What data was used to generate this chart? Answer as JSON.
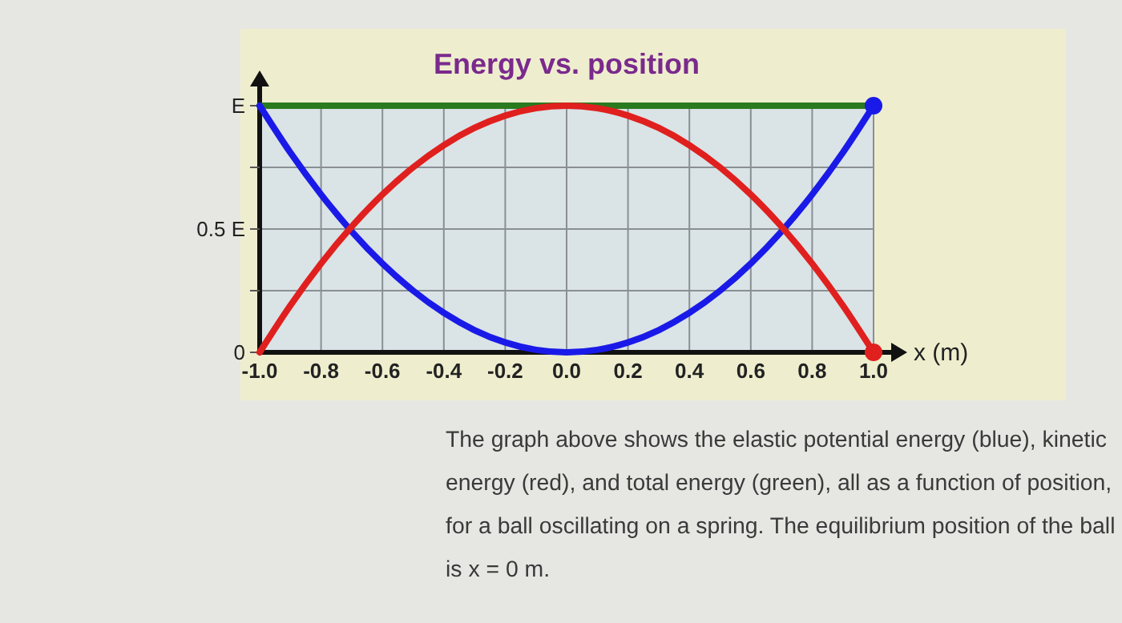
{
  "chart_data": {
    "type": "line",
    "title": "Energy vs. position",
    "xlabel": "x (m)",
    "x": [
      -1,
      -0.9,
      -0.8,
      -0.7,
      -0.6,
      -0.5,
      -0.4,
      -0.3,
      -0.2,
      -0.1,
      0,
      0.1,
      0.2,
      0.3,
      0.4,
      0.5,
      0.6,
      0.7,
      0.8,
      0.9,
      1
    ],
    "series": [
      {
        "color": "#2a7a1e",
        "values": [
          1,
          1,
          1,
          1,
          1,
          1,
          1,
          1,
          1,
          1,
          1,
          1,
          1,
          1,
          1,
          1,
          1,
          1,
          1,
          1,
          1
        ]
      },
      {
        "color": "#1a1ae8",
        "values": [
          1,
          0.81,
          0.64,
          0.49,
          0.36,
          0.25,
          0.16,
          0.09,
          0.04,
          0.01,
          0,
          0.01,
          0.04,
          0.09,
          0.16,
          0.25,
          0.36,
          0.49,
          0.64,
          0.81,
          1
        ]
      },
      {
        "color": "#e0201e",
        "values": [
          0,
          0.19,
          0.36,
          0.51,
          0.64,
          0.75,
          0.84,
          0.91,
          0.96,
          0.99,
          1,
          0.99,
          0.96,
          0.91,
          0.84,
          0.75,
          0.64,
          0.51,
          0.36,
          0.19,
          0
        ]
      },
      {
        "type": "scatter",
        "color": "#1a1ae8",
        "x": [
          1
        ],
        "values": [
          1
        ]
      },
      {
        "type": "scatter",
        "color": "#e0201e",
        "x": [
          1
        ],
        "values": [
          0
        ]
      }
    ],
    "xlim": [
      -1,
      1
    ],
    "xticks": [
      {
        "value": -1,
        "label": "-1.0"
      },
      {
        "value": -0.8,
        "label": "-0.8"
      },
      {
        "value": -0.6,
        "label": "-0.6"
      },
      {
        "value": -0.4,
        "label": "-0.4"
      },
      {
        "value": -0.2,
        "label": "-0.2"
      },
      {
        "value": 0,
        "label": "0.0"
      },
      {
        "value": 0.2,
        "label": "0.2"
      },
      {
        "value": 0.4,
        "label": "0.4"
      },
      {
        "value": 0.6,
        "label": "0.6"
      },
      {
        "value": 0.8,
        "label": "0.8"
      },
      {
        "value": 1,
        "label": "1.0"
      }
    ],
    "ylim": [
      0,
      1
    ],
    "yticks": [
      0,
      {
        "value": 0.25,
        "label": null
      },
      {
        "value": 0.5,
        "label": "0.5 E"
      },
      {
        "value": 0.75,
        "label": null
      },
      {
        "value": 1,
        "label": "E"
      }
    ],
    "grid": true,
    "line_style": "solid",
    "annotations": [
      "The graph above shows the elastic potential energy (blue), kinetic energy (red), and total energy (green), all as a function of position, for a ball oscillating on a spring. The equilibrium position of the ball is x = 0 m."
    ]
  }
}
